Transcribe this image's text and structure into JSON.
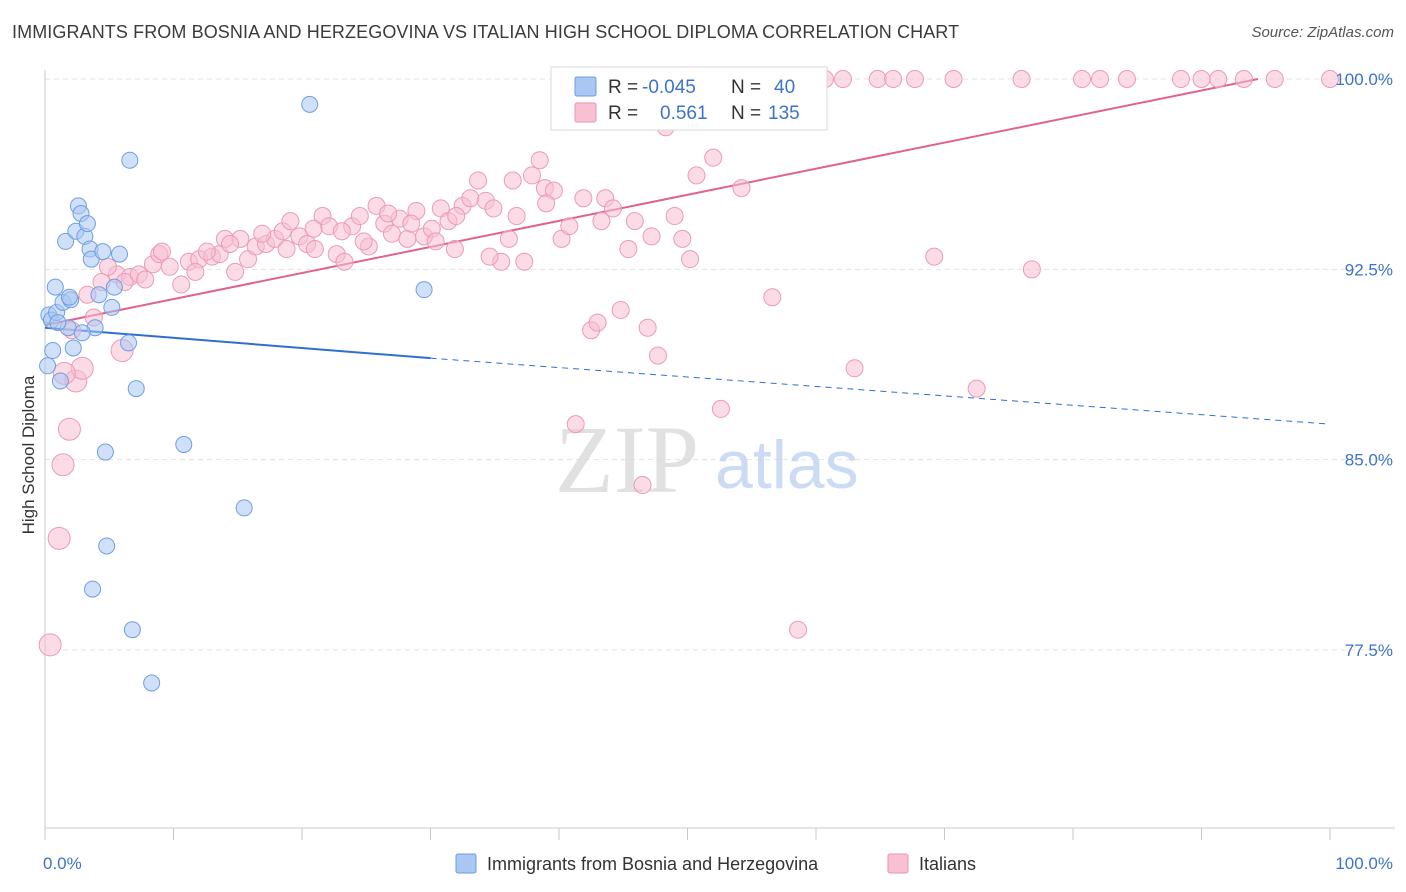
{
  "title": "IMMIGRANTS FROM BOSNIA AND HERZEGOVINA VS ITALIAN HIGH SCHOOL DIPLOMA CORRELATION CHART",
  "source": "Source: ZipAtlas.com",
  "watermark": {
    "zip": "ZIP",
    "atlas": "atlas"
  },
  "legend": {
    "r_label": "R =",
    "n_label": "N =",
    "rows": [
      {
        "r": "-0.045",
        "n": "40",
        "color": "#a9c7f2",
        "stroke": "#6b9be0"
      },
      {
        "r": "0.561",
        "n": "135",
        "color": "#f8c0d2",
        "stroke": "#e895b0"
      }
    ]
  },
  "colors": {
    "blue": "#6e9fe3",
    "pink": "#ef93b4",
    "blue_line": "#2e6fd0",
    "pink_line": "#e0628d"
  },
  "chart_data": {
    "type": "scatter",
    "title": "IMMIGRANTS FROM BOSNIA AND HERZEGOVINA VS ITALIAN HIGH SCHOOL DIPLOMA CORRELATION CHART",
    "xlabel": "",
    "ylabel": "High School Diploma",
    "xlim": [
      0,
      100
    ],
    "ylim": [
      71.0,
      100.8
    ],
    "x_tick_labels": [
      "0.0%",
      "100.0%"
    ],
    "y_ticks": [
      77.5,
      85.0,
      92.5,
      100.0
    ],
    "y_tick_labels": [
      "77.5%",
      "85.0%",
      "92.5%",
      "100.0%"
    ],
    "grid": true,
    "legend_position": "top-center",
    "series": [
      {
        "name": "Immigrants from Bosnia and Herzegovina",
        "color": "#6e9fe3",
        "trend": {
          "x": [
            0,
            30
          ],
          "y": [
            90.2,
            89.0
          ],
          "dashed_to": [
            100,
            86.4
          ]
        },
        "points": [
          [
            0.3,
            90.7
          ],
          [
            0.5,
            90.5
          ],
          [
            0.6,
            89.3
          ],
          [
            0.8,
            91.8
          ],
          [
            0.9,
            90.8
          ],
          [
            1.2,
            88.1
          ],
          [
            1.4,
            91.2
          ],
          [
            1.6,
            93.6
          ],
          [
            1.8,
            90.2
          ],
          [
            2.0,
            91.3
          ],
          [
            2.2,
            89.4
          ],
          [
            2.4,
            94.0
          ],
          [
            2.6,
            95.0
          ],
          [
            2.8,
            94.7
          ],
          [
            3.1,
            93.8
          ],
          [
            3.3,
            94.3
          ],
          [
            3.5,
            93.3
          ],
          [
            3.6,
            92.9
          ],
          [
            3.9,
            90.2
          ],
          [
            4.2,
            91.5
          ],
          [
            4.5,
            93.2
          ],
          [
            4.7,
            85.3
          ],
          [
            4.8,
            81.6
          ],
          [
            5.2,
            91.0
          ],
          [
            5.4,
            91.8
          ],
          [
            5.8,
            93.1
          ],
          [
            3.7,
            79.9
          ],
          [
            6.5,
            89.6
          ],
          [
            6.6,
            96.8
          ],
          [
            6.8,
            78.3
          ],
          [
            7.1,
            87.8
          ],
          [
            8.3,
            76.2
          ],
          [
            10.8,
            85.6
          ],
          [
            15.5,
            83.1
          ],
          [
            20.6,
            99.0
          ],
          [
            29.5,
            91.7
          ],
          [
            1.0,
            90.4
          ],
          [
            2.9,
            90.0
          ],
          [
            0.2,
            88.7
          ],
          [
            1.9,
            91.4
          ]
        ]
      },
      {
        "name": "Italians",
        "color": "#ef93b4",
        "trend": {
          "x": [
            0,
            94.4
          ],
          "y": [
            90.3,
            100.0
          ]
        },
        "points": [
          [
            0.4,
            77.7
          ],
          [
            1.1,
            81.9
          ],
          [
            1.4,
            84.8
          ],
          [
            1.9,
            86.2
          ],
          [
            2.4,
            88.1
          ],
          [
            2.9,
            88.6
          ],
          [
            3.8,
            90.6
          ],
          [
            4.4,
            92.0
          ],
          [
            5.6,
            92.3
          ],
          [
            6.0,
            89.3
          ],
          [
            6.6,
            92.2
          ],
          [
            7.3,
            92.3
          ],
          [
            8.4,
            92.7
          ],
          [
            8.9,
            93.1
          ],
          [
            9.7,
            92.6
          ],
          [
            10.6,
            91.9
          ],
          [
            11.2,
            92.8
          ],
          [
            12.0,
            92.9
          ],
          [
            13.0,
            93.0
          ],
          [
            13.6,
            93.1
          ],
          [
            14.0,
            93.7
          ],
          [
            14.8,
            92.4
          ],
          [
            15.2,
            93.7
          ],
          [
            15.8,
            92.9
          ],
          [
            16.4,
            93.4
          ],
          [
            17.2,
            93.5
          ],
          [
            17.9,
            93.7
          ],
          [
            18.5,
            94.0
          ],
          [
            19.1,
            94.4
          ],
          [
            19.8,
            93.8
          ],
          [
            20.4,
            93.5
          ],
          [
            21.0,
            93.3
          ],
          [
            21.6,
            94.6
          ],
          [
            22.1,
            94.2
          ],
          [
            22.7,
            93.1
          ],
          [
            23.3,
            92.8
          ],
          [
            23.9,
            94.2
          ],
          [
            24.5,
            94.6
          ],
          [
            25.2,
            93.4
          ],
          [
            25.8,
            95.0
          ],
          [
            26.4,
            94.3
          ],
          [
            27.0,
            93.9
          ],
          [
            27.6,
            94.5
          ],
          [
            28.2,
            93.7
          ],
          [
            28.9,
            94.8
          ],
          [
            29.5,
            93.8
          ],
          [
            30.1,
            94.1
          ],
          [
            30.8,
            94.9
          ],
          [
            31.4,
            94.4
          ],
          [
            31.9,
            93.3
          ],
          [
            32.5,
            95.0
          ],
          [
            33.1,
            95.3
          ],
          [
            33.7,
            96.0
          ],
          [
            34.3,
            95.2
          ],
          [
            34.9,
            94.9
          ],
          [
            35.5,
            92.8
          ],
          [
            36.1,
            93.7
          ],
          [
            36.7,
            94.6
          ],
          [
            37.3,
            92.8
          ],
          [
            37.9,
            96.2
          ],
          [
            38.5,
            96.8
          ],
          [
            38.9,
            95.7
          ],
          [
            39.6,
            95.6
          ],
          [
            40.2,
            93.7
          ],
          [
            40.8,
            94.2
          ],
          [
            41.3,
            86.4
          ],
          [
            41.9,
            95.3
          ],
          [
            42.5,
            90.1
          ],
          [
            43.0,
            90.4
          ],
          [
            43.6,
            95.3
          ],
          [
            44.2,
            94.9
          ],
          [
            44.8,
            90.9
          ],
          [
            45.4,
            93.3
          ],
          [
            45.9,
            94.4
          ],
          [
            46.5,
            84.0
          ],
          [
            46.9,
            90.2
          ],
          [
            47.7,
            89.1
          ],
          [
            48.3,
            98.1
          ],
          [
            49.0,
            94.6
          ],
          [
            49.6,
            93.7
          ],
          [
            50.2,
            92.9
          ],
          [
            51.3,
            100.0
          ],
          [
            52.0,
            96.9
          ],
          [
            52.6,
            87.0
          ],
          [
            53.3,
            100.0
          ],
          [
            54.2,
            95.7
          ],
          [
            55.0,
            100.0
          ],
          [
            56.1,
            100.0
          ],
          [
            56.6,
            91.4
          ],
          [
            57.6,
            100.0
          ],
          [
            58.6,
            78.3
          ],
          [
            59.2,
            100.0
          ],
          [
            60.7,
            100.0
          ],
          [
            62.1,
            100.0
          ],
          [
            63.0,
            88.6
          ],
          [
            64.8,
            100.0
          ],
          [
            66.0,
            100.0
          ],
          [
            67.7,
            100.0
          ],
          [
            69.2,
            93.0
          ],
          [
            70.7,
            100.0
          ],
          [
            72.5,
            87.8
          ],
          [
            76.0,
            100.0
          ],
          [
            76.8,
            92.5
          ],
          [
            80.7,
            100.0
          ],
          [
            82.1,
            100.0
          ],
          [
            84.2,
            100.0
          ],
          [
            88.4,
            100.0
          ],
          [
            90.0,
            100.0
          ],
          [
            91.3,
            100.0
          ],
          [
            93.3,
            100.0
          ],
          [
            95.7,
            100.0
          ],
          [
            100.0,
            100.0
          ],
          [
            1.5,
            88.4
          ],
          [
            2.1,
            90.1
          ],
          [
            3.3,
            91.5
          ],
          [
            4.9,
            92.6
          ],
          [
            6.2,
            92.0
          ],
          [
            7.8,
            92.1
          ],
          [
            9.1,
            93.2
          ],
          [
            11.7,
            92.4
          ],
          [
            12.6,
            93.2
          ],
          [
            14.4,
            93.5
          ],
          [
            16.9,
            93.9
          ],
          [
            18.8,
            93.3
          ],
          [
            20.9,
            94.1
          ],
          [
            23.1,
            94.0
          ],
          [
            24.8,
            93.6
          ],
          [
            26.7,
            94.7
          ],
          [
            28.5,
            94.3
          ],
          [
            30.4,
            93.6
          ],
          [
            32.0,
            94.6
          ],
          [
            34.6,
            93.0
          ],
          [
            36.4,
            96.0
          ],
          [
            39.0,
            95.1
          ],
          [
            43.3,
            94.4
          ],
          [
            47.2,
            93.8
          ],
          [
            50.7,
            96.2
          ]
        ]
      }
    ]
  },
  "bottom_legend": [
    {
      "label": "Immigrants from Bosnia and Herzegovina",
      "color": "#a9c7f2",
      "stroke": "#6b9be0"
    },
    {
      "label": "Italians",
      "color": "#f8c0d2",
      "stroke": "#e895b0"
    }
  ]
}
